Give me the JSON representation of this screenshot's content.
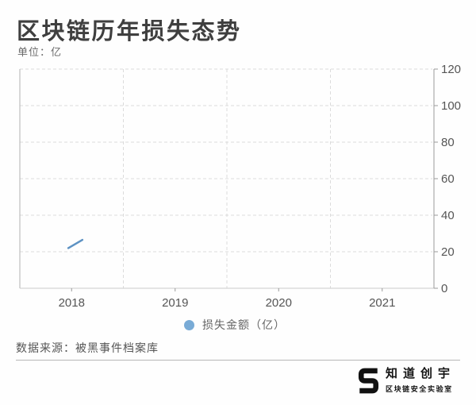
{
  "header": {
    "title": "区块链历年损失态势",
    "unit_label": "单位：亿"
  },
  "chart_data": {
    "type": "line",
    "title": "区块链历年损失态势",
    "unit": "亿",
    "categories": [
      "2018",
      "2019",
      "2020",
      "2021"
    ],
    "y_ticks": [
      0,
      20,
      40,
      60,
      80,
      100,
      120
    ],
    "ylim": [
      0,
      120
    ],
    "y_axis_side": "right",
    "grid": "dashed",
    "legend_position": "bottom",
    "series": [
      {
        "name": "损失金额（亿）",
        "color": "#5d92c3",
        "note": "line only partially rendered: short rising segment visible near 2018",
        "visible_segment": {
          "x_fractions": [
            0.117,
            0.151
          ],
          "values": [
            22,
            26.5
          ]
        }
      }
    ]
  },
  "legend": {
    "items": [
      {
        "label": "损失金额（亿）",
        "color": "#79abd6"
      }
    ]
  },
  "footer": {
    "source": "数据来源：被黑事件档案库"
  },
  "logo": {
    "brand": "知道创宇",
    "subtitle": "区块链安全实验室"
  },
  "colors": {
    "line": "#5d92c3",
    "legend_dot": "#79abd6",
    "grid_dashed": "#dcdcdc",
    "axis_line": "#9a9a9a",
    "axis_label": "#555555",
    "title_text": "#3f3f3f"
  }
}
